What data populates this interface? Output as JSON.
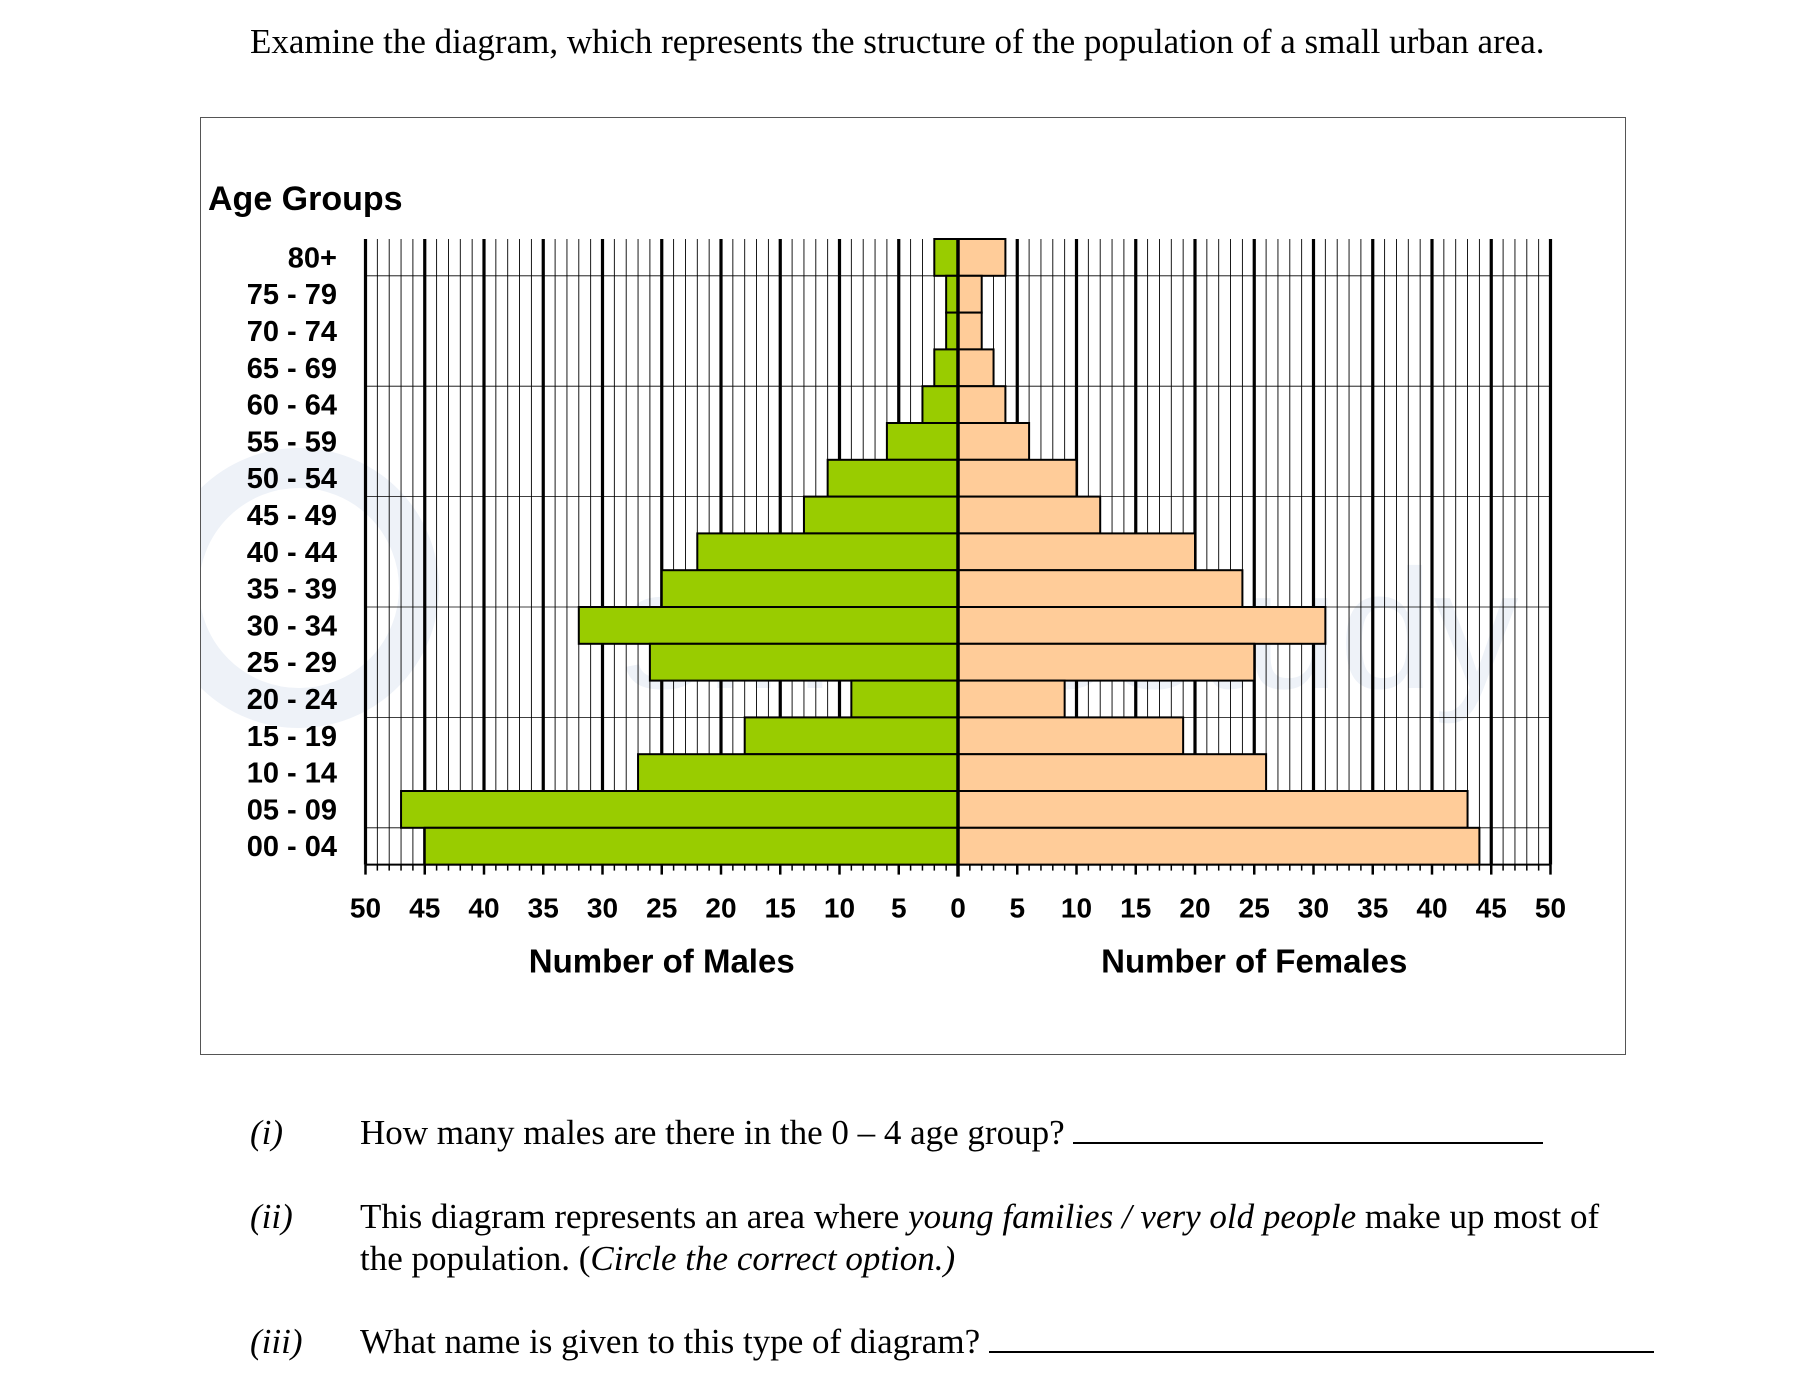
{
  "intro": "Examine the diagram, which represents the structure of the population of a small urban area.",
  "watermark": "simplestudy",
  "chart_data": {
    "type": "bar",
    "orientation": "horizontal",
    "layout": "population-pyramid",
    "y_axis_title": "Age Groups",
    "categories": [
      "80+",
      "75 - 79",
      "70 - 74",
      "65 - 69",
      "60 - 64",
      "55 - 59",
      "50 - 54",
      "45 - 49",
      "40 - 44",
      "35 - 39",
      "30 - 34",
      "25 - 29",
      "20 - 24",
      "15 - 19",
      "10 - 14",
      "05 - 09",
      "00 - 04"
    ],
    "series": [
      {
        "name": "Number of Males",
        "side": "left",
        "color": "#99cc00",
        "values": [
          2,
          1,
          1,
          2,
          3,
          6,
          11,
          13,
          22,
          25,
          32,
          26,
          9,
          18,
          27,
          47,
          45
        ]
      },
      {
        "name": "Number of Females",
        "side": "right",
        "color": "#ffcc99",
        "values": [
          4,
          2,
          2,
          3,
          4,
          6,
          10,
          12,
          20,
          24,
          31,
          25,
          9,
          19,
          26,
          43,
          44
        ]
      }
    ],
    "x_ticks_left": [
      "50",
      "45",
      "40",
      "35",
      "30",
      "25",
      "20",
      "15",
      "10",
      "5"
    ],
    "x_tick_center": "0",
    "x_ticks_right": [
      "5",
      "10",
      "15",
      "20",
      "25",
      "30",
      "35",
      "40",
      "45",
      "50"
    ],
    "xlim": [
      0,
      50
    ],
    "xlabel_left": "Number of Males",
    "xlabel_right": "Number of Females",
    "grid": true
  },
  "questions": [
    {
      "num": "(i)",
      "text": "How many males are there in the 0 – 4 age group?"
    },
    {
      "num": "(ii)",
      "text_before": "This diagram represents an area where ",
      "text_option": "young families / very old people",
      "text_after": " make up most of",
      "line2_before": "the population.  (",
      "line2_italic": "Circle the correct option.)"
    },
    {
      "num": "(iii)",
      "text": "What name is given to this type of diagram?"
    }
  ]
}
